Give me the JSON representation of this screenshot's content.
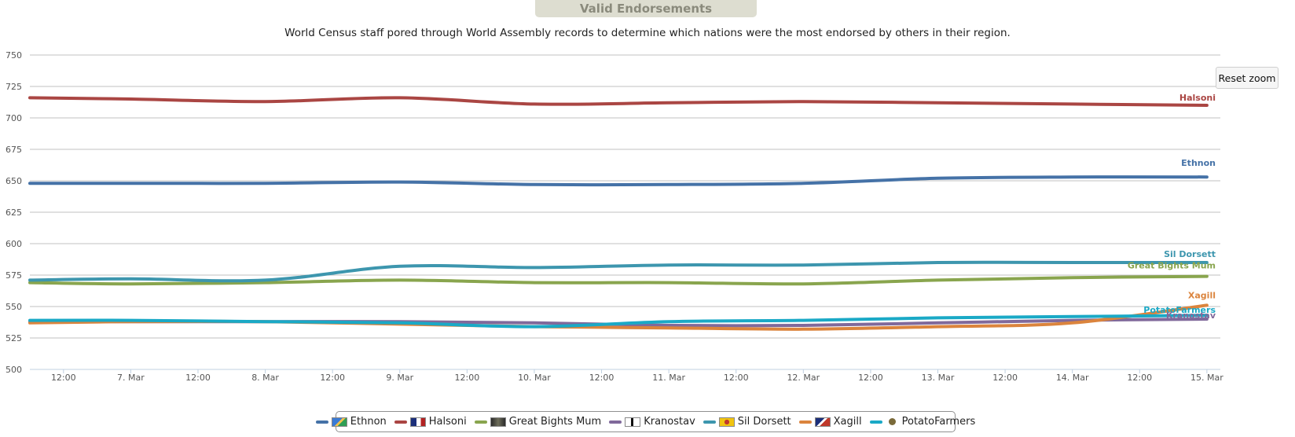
{
  "title": "Valid Endorsements",
  "subtitle": "World Census staff pored through World Assembly records to determine which nations were the most endorsed by others in their region.",
  "reset_zoom_label": "Reset zoom",
  "chart_data": {
    "type": "line",
    "title": "Valid Endorsements",
    "xlabel": "",
    "ylabel": "",
    "ylim": [
      500,
      750
    ],
    "xlim": [
      6.25,
      15.1
    ],
    "y_ticks": [
      500,
      525,
      550,
      575,
      600,
      625,
      650,
      675,
      700,
      725,
      750
    ],
    "x_ticks": [
      {
        "x": 6.5,
        "label": "12:00"
      },
      {
        "x": 7,
        "label": "7. Mar"
      },
      {
        "x": 7.5,
        "label": "12:00"
      },
      {
        "x": 8,
        "label": "8. Mar"
      },
      {
        "x": 8.5,
        "label": "12:00"
      },
      {
        "x": 9,
        "label": "9. Mar"
      },
      {
        "x": 9.5,
        "label": "12:00"
      },
      {
        "x": 10,
        "label": "10. Mar"
      },
      {
        "x": 10.5,
        "label": "12:00"
      },
      {
        "x": 11,
        "label": "11. Mar"
      },
      {
        "x": 11.5,
        "label": "12:00"
      },
      {
        "x": 12,
        "label": "12. Mar"
      },
      {
        "x": 12.5,
        "label": "12:00"
      },
      {
        "x": 13,
        "label": "13. Mar"
      },
      {
        "x": 13.5,
        "label": "12:00"
      },
      {
        "x": 14,
        "label": "14. Mar"
      },
      {
        "x": 14.5,
        "label": "12:00"
      },
      {
        "x": 15,
        "label": "15. Mar"
      }
    ],
    "x": [
      6.25,
      7,
      8,
      9,
      10,
      11,
      12,
      13,
      14,
      15
    ],
    "series": [
      {
        "name": "Ethnon",
        "color": "#4572a7",
        "values": [
          648,
          648,
          648,
          649,
          647,
          647,
          648,
          652,
          653,
          653
        ]
      },
      {
        "name": "Halsoni",
        "color": "#aa4643",
        "values": [
          716,
          715,
          713,
          716,
          711,
          712,
          713,
          712,
          711,
          710
        ]
      },
      {
        "name": "Great Bights Mum",
        "color": "#89a54e",
        "values": [
          569,
          568,
          569,
          571,
          569,
          569,
          568,
          571,
          573,
          574
        ]
      },
      {
        "name": "Kranostav",
        "color": "#80699b",
        "values": [
          538,
          538,
          538,
          538,
          537,
          535,
          535,
          537,
          539,
          540
        ]
      },
      {
        "name": "Sil Dorsett",
        "color": "#3d96ae",
        "values": [
          571,
          572,
          571,
          582,
          581,
          583,
          583,
          585,
          585,
          585
        ]
      },
      {
        "name": "Xagill",
        "color": "#db843d",
        "values": [
          537,
          538,
          538,
          536,
          534,
          533,
          532,
          534,
          537,
          551
        ]
      },
      {
        "name": "PotatoFarmers",
        "color": "#1aa9c6",
        "values": [
          539,
          539,
          538,
          537,
          534,
          538,
          539,
          541,
          542,
          543
        ]
      }
    ],
    "end_labels": [
      {
        "name": "Halsoni",
        "color": "#aa4643"
      },
      {
        "name": "Ethnon",
        "color": "#4572a7"
      },
      {
        "name": "Sil Dorsett",
        "color": "#3d96ae"
      },
      {
        "name": "Great Bights Mum",
        "color": "#89a54e"
      },
      {
        "name": "Xagill",
        "color": "#db843d"
      },
      {
        "name": "PotatoFarmers",
        "color": "#1aa9c6"
      },
      {
        "name": "Kranostav",
        "color": "#80699b"
      }
    ],
    "legend_position": "bottom-center"
  },
  "legend": [
    {
      "name": "Ethnon",
      "color": "#4572a7",
      "icon": "flag-icon"
    },
    {
      "name": "Halsoni",
      "color": "#aa4643",
      "icon": "flag-icon"
    },
    {
      "name": "Great Bights Mum",
      "color": "#89a54e",
      "icon": "flag-icon"
    },
    {
      "name": "Kranostav",
      "color": "#80699b",
      "icon": "flag-icon"
    },
    {
      "name": "Sil Dorsett",
      "color": "#3d96ae",
      "icon": "flag-icon"
    },
    {
      "name": "Xagill",
      "color": "#db843d",
      "icon": "flag-icon"
    },
    {
      "name": "PotatoFarmers",
      "color": "#1aa9c6",
      "icon": "dot-icon"
    }
  ]
}
